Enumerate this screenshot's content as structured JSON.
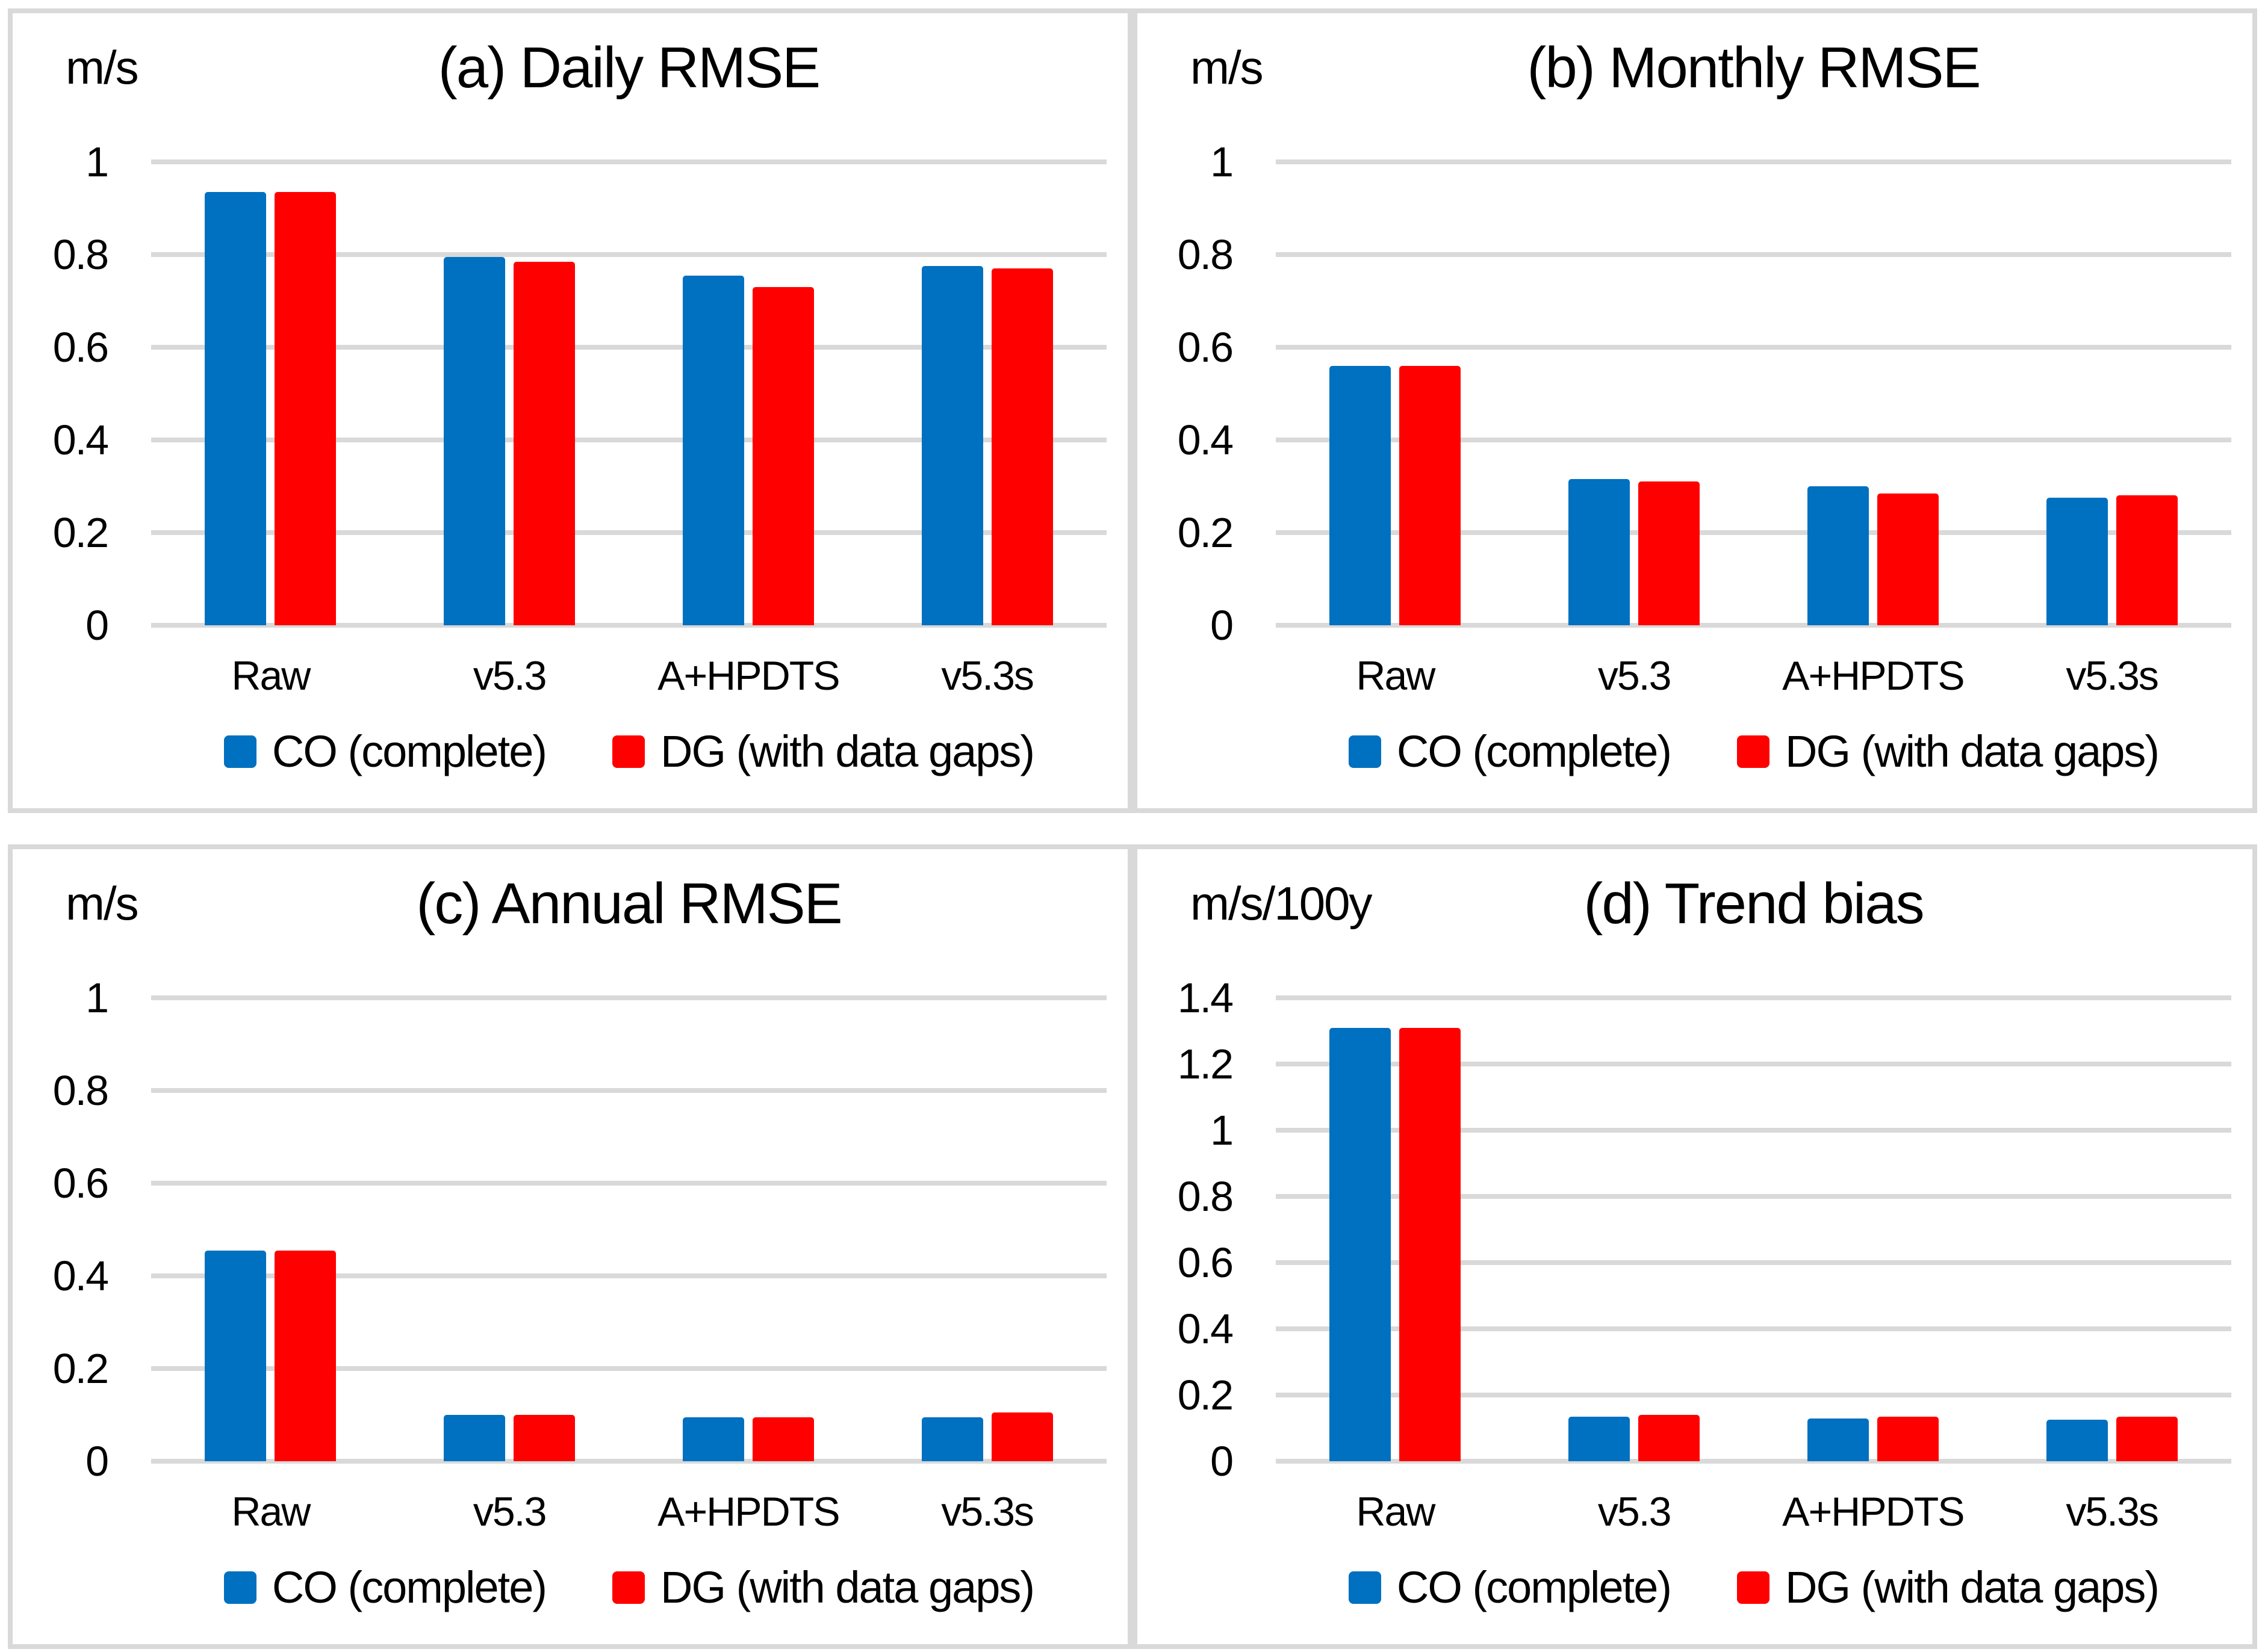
{
  "colors": {
    "co_series": "#0070C0",
    "dg_series": "#FF0000",
    "gridline": "#D9D9D9",
    "panel_border": "#D9D9D9",
    "text": "#000000",
    "background": "#FFFFFF"
  },
  "legend": {
    "co_label": "CO (complete)",
    "dg_label": "DG (with data gaps)"
  },
  "chart_data": [
    {
      "type": "bar",
      "title": "(a) Daily RMSE",
      "unit": "m/s",
      "categories": [
        "Raw",
        "v5.3",
        "A+HPDTS",
        "v5.3s"
      ],
      "series": [
        {
          "name": "CO (complete)",
          "color": "#0070C0",
          "values": [
            0.935,
            0.795,
            0.755,
            0.775
          ]
        },
        {
          "name": "DG (with data gaps)",
          "color": "#FF0000",
          "values": [
            0.935,
            0.785,
            0.73,
            0.77
          ]
        }
      ],
      "ylim": [
        0,
        1
      ],
      "yticks": [
        0,
        0.2,
        0.4,
        0.6,
        0.8,
        1
      ],
      "ytick_labels": [
        "0",
        "0.2",
        "0.4",
        "0.6",
        "0.8",
        "1"
      ],
      "grid": true,
      "legend_position": "bottom"
    },
    {
      "type": "bar",
      "title": "(b) Monthly RMSE",
      "unit": "m/s",
      "categories": [
        "Raw",
        "v5.3",
        "A+HPDTS",
        "v5.3s"
      ],
      "series": [
        {
          "name": "CO (complete)",
          "color": "#0070C0",
          "values": [
            0.56,
            0.315,
            0.3,
            0.275
          ]
        },
        {
          "name": "DG (with data gaps)",
          "color": "#FF0000",
          "values": [
            0.56,
            0.31,
            0.285,
            0.28
          ]
        }
      ],
      "ylim": [
        0,
        1
      ],
      "yticks": [
        0,
        0.2,
        0.4,
        0.6,
        0.8,
        1
      ],
      "ytick_labels": [
        "0",
        "0.2",
        "0.4",
        "0.6",
        "0.8",
        "1"
      ],
      "grid": true,
      "legend_position": "bottom"
    },
    {
      "type": "bar",
      "title": "(c) Annual RMSE",
      "unit": "m/s",
      "categories": [
        "Raw",
        "v5.3",
        "A+HPDTS",
        "v5.3s"
      ],
      "series": [
        {
          "name": "CO (complete)",
          "color": "#0070C0",
          "values": [
            0.455,
            0.1,
            0.095,
            0.095
          ]
        },
        {
          "name": "DG (with data gaps)",
          "color": "#FF0000",
          "values": [
            0.455,
            0.1,
            0.095,
            0.105
          ]
        }
      ],
      "ylim": [
        0,
        1
      ],
      "yticks": [
        0,
        0.2,
        0.4,
        0.6,
        0.8,
        1
      ],
      "ytick_labels": [
        "0",
        "0.2",
        "0.4",
        "0.6",
        "0.8",
        "1"
      ],
      "grid": true,
      "legend_position": "bottom"
    },
    {
      "type": "bar",
      "title": "(d) Trend bias",
      "unit": "m/s/100y",
      "categories": [
        "Raw",
        "v5.3",
        "A+HPDTS",
        "v5.3s"
      ],
      "series": [
        {
          "name": "CO (complete)",
          "color": "#0070C0",
          "values": [
            1.31,
            0.135,
            0.13,
            0.125
          ]
        },
        {
          "name": "DG (with data gaps)",
          "color": "#FF0000",
          "values": [
            1.31,
            0.14,
            0.135,
            0.135
          ]
        }
      ],
      "ylim": [
        0,
        1.4
      ],
      "yticks": [
        0,
        0.2,
        0.4,
        0.6,
        0.8,
        1,
        1.2,
        1.4
      ],
      "ytick_labels": [
        "0",
        "0.2",
        "0.4",
        "0.6",
        "0.8",
        "1",
        "1.2",
        "1.4"
      ],
      "grid": true,
      "legend_position": "bottom"
    }
  ]
}
